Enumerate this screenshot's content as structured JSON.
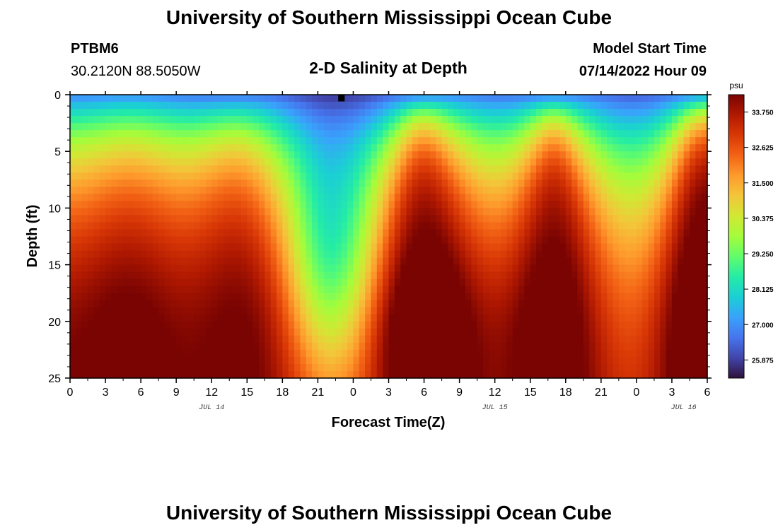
{
  "page": {
    "title": "University of Southern Mississippi Ocean Cube",
    "station_id": "PTBM6",
    "coordinates": "30.2120N  88.5050W",
    "plot_title": "2-D Salinity at Depth",
    "model_start_label": "Model Start Time",
    "model_start_value": "07/14/2022 Hour 09",
    "footer_title": "University of Southern Mississippi Ocean Cube"
  },
  "chart_data": {
    "type": "heatmap",
    "title": "2-D Salinity at Depth",
    "xlabel": "Forecast Time(Z)",
    "ylabel": "Depth (ft)",
    "x_range_hours": [
      0,
      54
    ],
    "y_range": [
      0,
      25
    ],
    "y_ticks": [
      "0",
      "5",
      "10",
      "15",
      "20",
      "25"
    ],
    "x_tick_labels": [
      "0",
      "3",
      "6",
      "9",
      "12",
      "15",
      "18",
      "21",
      "0",
      "3",
      "6",
      "9",
      "12",
      "15",
      "18",
      "21",
      "0",
      "3",
      "6"
    ],
    "date_labels": [
      {
        "label": "JUL 14",
        "hour": 12
      },
      {
        "label": "JUL 15",
        "hour": 36
      },
      {
        "label": "JUL 16",
        "hour": 52
      }
    ],
    "colorbar": {
      "unit": "psu",
      "min": 25.3,
      "max": 34.3,
      "tick_labels": [
        "33.750",
        "32.625",
        "31.500",
        "30.375",
        "29.250",
        "28.125",
        "27.000",
        "25.875"
      ],
      "colors": [
        "#30123b",
        "#4145ab",
        "#4675ed",
        "#39a2fc",
        "#1bcfd4",
        "#24eca6",
        "#61fc6c",
        "#a4fc3b",
        "#d1e834",
        "#f3c63a",
        "#fe9b2d",
        "#f36315",
        "#d93806",
        "#b11901",
        "#7a0402"
      ]
    },
    "marker": {
      "label": "■",
      "hour": 23
    },
    "pattern": {
      "surface_salinity_min": 26.0,
      "bottom_salinity_max": 33.6,
      "fresh_lens_hours": [
        21,
        33,
        50
      ],
      "salty_core_hours": [
        3,
        14,
        29,
        40,
        50
      ]
    }
  }
}
